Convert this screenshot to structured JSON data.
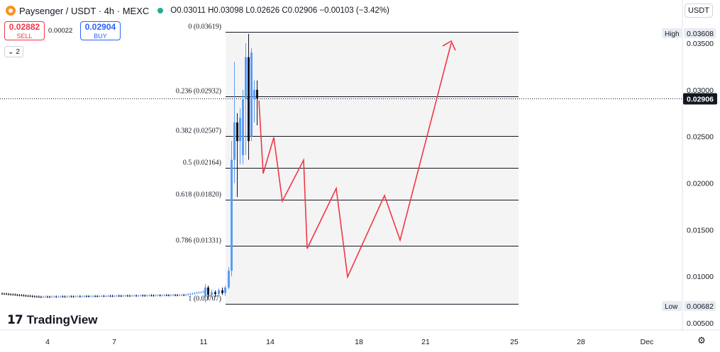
{
  "header": {
    "title": "Paysenger / USDT · 4h · MEXC",
    "ohlc": "O0.03011 H0.03098 L0.02626 C0.02906 −0.00103 (−3.42%)"
  },
  "trade": {
    "sell_price": "0.02882",
    "sell_label": "SELL",
    "spread": "0.00022",
    "buy_price": "0.02904",
    "buy_label": "BUY"
  },
  "collapse_label": "2",
  "currency_label": "USDT",
  "price_axis": {
    "ticks": [
      "0.03500",
      "0.03000",
      "0.02500",
      "0.02000",
      "0.01500",
      "0.01000",
      "0.00500"
    ],
    "high_label": "High",
    "high_value": "0.03608",
    "low_label": "Low",
    "low_value": "0.00682",
    "current_value": "0.02906"
  },
  "time_axis": {
    "ticks": [
      "4",
      "7",
      "11",
      "14",
      "18",
      "21",
      "25",
      "28",
      "Dec"
    ]
  },
  "fib": {
    "levels": [
      {
        "label": "0 (0.03619)",
        "price": 0.03619
      },
      {
        "label": "0.236 (0.02932)",
        "price": 0.02932
      },
      {
        "label": "0.382 (0.02507)",
        "price": 0.02507
      },
      {
        "label": "0.5 (0.02164)",
        "price": 0.02164
      },
      {
        "label": "0.618 (0.01820)",
        "price": 0.0182
      },
      {
        "label": "0.786 (0.01331)",
        "price": 0.01331
      },
      {
        "label": "1 (0.00707)",
        "price": 0.00707
      }
    ]
  },
  "colors": {
    "up": "#5b9cf6",
    "down": "#131722",
    "fib_line": "#131722",
    "projection": "#f23645",
    "sell": "#f23645",
    "buy": "#2962ff"
  },
  "brand": "TradingView",
  "chart_data": {
    "type": "line",
    "series": [],
    "candles_start_date": "4",
    "candles_end_date": "14"
  }
}
